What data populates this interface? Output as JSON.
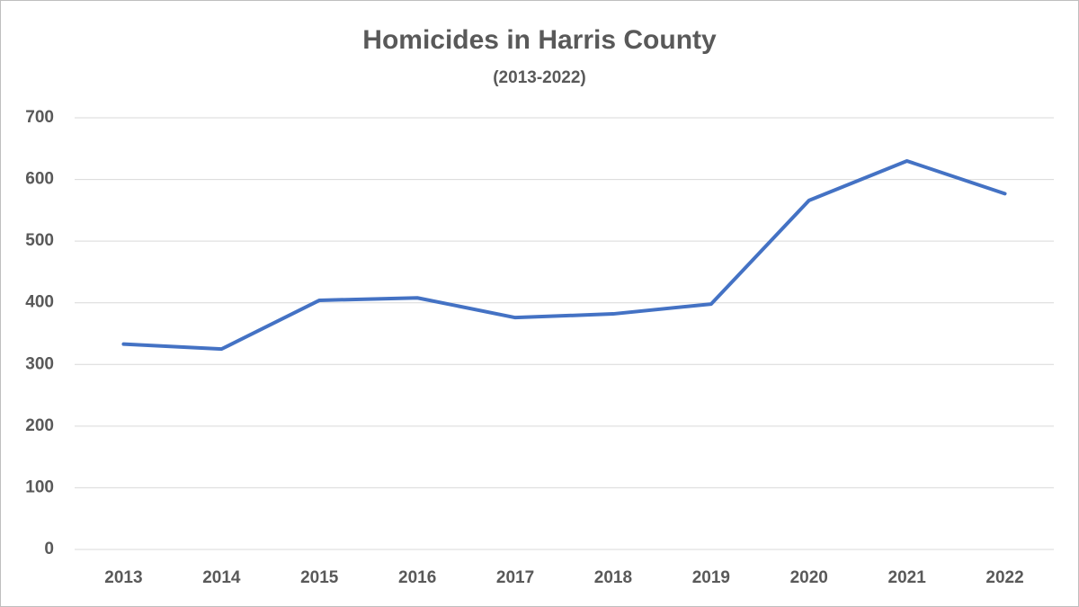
{
  "chart_data": {
    "type": "line",
    "title": "Homicides in Harris County",
    "subtitle": "(2013-2022)",
    "categories": [
      "2013",
      "2014",
      "2015",
      "2016",
      "2017",
      "2018",
      "2019",
      "2020",
      "2021",
      "2022"
    ],
    "series": [
      {
        "name": "Homicides",
        "color": "#4472c4",
        "values": [
          333,
          325,
          404,
          408,
          376,
          382,
          398,
          566,
          630,
          577
        ]
      }
    ],
    "ylim": [
      0,
      700
    ],
    "yticks": [
      0,
      100,
      200,
      300,
      400,
      500,
      600,
      700
    ],
    "grid": true,
    "legend": false
  }
}
